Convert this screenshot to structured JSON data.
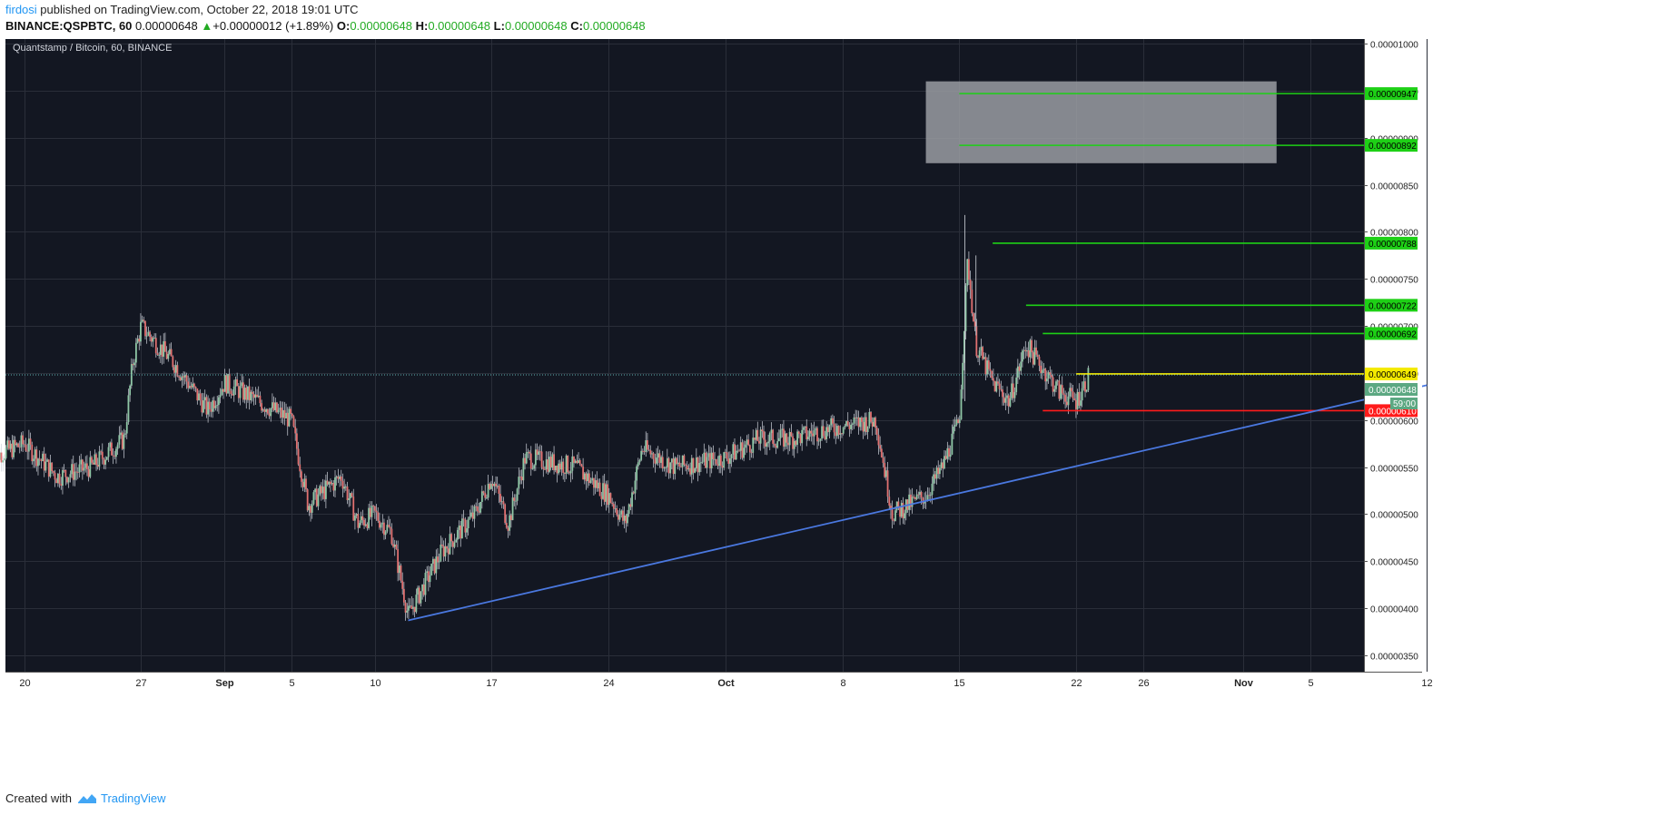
{
  "header": {
    "author": "firdosi",
    "published_text": " published on TradingView.com, October 22, 2018 19:01 UTC",
    "symbol_line": "BINANCE:QSPBTC, 60",
    "last": "0.00000648",
    "change_arrow": "▲",
    "change": "+0.00000012 (+1.89%)",
    "o_label": "O:",
    "o": "0.00000648",
    "h_label": "H:",
    "h": "0.00000648",
    "l_label": "L:",
    "l": "0.00000648",
    "c_label": "C:",
    "c": "0.00000648"
  },
  "footer": {
    "created_with": "Created with",
    "brand": "TradingView"
  },
  "colors": {
    "background": "#131722",
    "grid": "#2a2e39",
    "axis_text": "#222222",
    "candle_up": "#8fc7a6",
    "candle_down": "#e07070",
    "wick": "#d0d4dc",
    "target_green": "#1ed016",
    "resistance_yellow": "#f4ea00",
    "support_red": "#ff1b1b",
    "trendline": "#4a78e0",
    "zone": "#9a9ca2"
  },
  "chart_data": {
    "type": "candlestick",
    "title": "Quantstamp / Bitcoin, 60, BINANCE",
    "y_unit": "BTC",
    "ylim": [
      3.325e-06,
      1.005e-05
    ],
    "y_ticks": [
      "0.00001000",
      "0.00000950",
      "0.00000900",
      "0.00000850",
      "0.00000800",
      "0.00000750",
      "0.00000700",
      "0.00000650",
      "0.00000600",
      "0.00000550",
      "0.00000500",
      "0.00000450",
      "0.00000400",
      "0.00000350"
    ],
    "x_ticks": [
      "20",
      "27",
      "Sep",
      "5",
      "10",
      "17",
      "24",
      "Oct",
      "8",
      "15",
      "22",
      "26",
      "Nov",
      "5",
      "12"
    ],
    "x_tick_dates": [
      "2018-08-20",
      "2018-08-27",
      "2018-09-01",
      "2018-09-05",
      "2018-09-10",
      "2018-09-17",
      "2018-09-24",
      "2018-10-01",
      "2018-10-08",
      "2018-10-15",
      "2018-10-22",
      "2018-10-26",
      "2018-11-01",
      "2018-11-05",
      "2018-11-12"
    ],
    "price_path": [
      [
        "2018-08-18",
        5.6e-06
      ],
      [
        "2018-08-20",
        5.75e-06
      ],
      [
        "2018-08-22",
        5.4e-06
      ],
      [
        "2018-08-24",
        5.5e-06
      ],
      [
        "2018-08-26",
        5.8e-06
      ],
      [
        "2018-08-26T12",
        6.6e-06
      ],
      [
        "2018-08-27",
        7e-06
      ],
      [
        "2018-08-29",
        6.6e-06
      ],
      [
        "2018-08-31",
        6.1e-06
      ],
      [
        "2018-09-01",
        6.4e-06
      ],
      [
        "2018-09-02",
        6.3e-06
      ],
      [
        "2018-09-03",
        6.2e-06
      ],
      [
        "2018-09-05",
        6e-06
      ],
      [
        "2018-09-06",
        5.1e-06
      ],
      [
        "2018-09-08",
        5.4e-06
      ],
      [
        "2018-09-09",
        4.9e-06
      ],
      [
        "2018-09-10",
        5e-06
      ],
      [
        "2018-09-11",
        4.8e-06
      ],
      [
        "2018-09-12",
        3.92e-06
      ],
      [
        "2018-09-14",
        4.6e-06
      ],
      [
        "2018-09-16",
        5e-06
      ],
      [
        "2018-09-17",
        5.4e-06
      ],
      [
        "2018-09-18",
        4.9e-06
      ],
      [
        "2018-09-19",
        5.6e-06
      ],
      [
        "2018-09-22",
        5.5e-06
      ],
      [
        "2018-09-24",
        5.2e-06
      ],
      [
        "2018-09-25",
        4.9e-06
      ],
      [
        "2018-09-26",
        5.7e-06
      ],
      [
        "2018-09-28",
        5.5e-06
      ],
      [
        "2018-10-01",
        5.6e-06
      ],
      [
        "2018-10-03",
        5.8e-06
      ],
      [
        "2018-10-05",
        5.8e-06
      ],
      [
        "2018-10-07",
        5.9e-06
      ],
      [
        "2018-10-10",
        6e-06
      ],
      [
        "2018-10-11",
        5e-06
      ],
      [
        "2018-10-13",
        5.2e-06
      ],
      [
        "2018-10-14",
        5.5e-06
      ],
      [
        "2018-10-15",
        6e-06
      ],
      [
        "2018-10-15T12",
        7.7e-06
      ],
      [
        "2018-10-16",
        6.8e-06
      ],
      [
        "2018-10-17",
        6.4e-06
      ],
      [
        "2018-10-18",
        6.2e-06
      ],
      [
        "2018-10-19",
        6.8e-06
      ],
      [
        "2018-10-21",
        6.3e-06
      ],
      [
        "2018-10-22",
        6.2e-06
      ],
      [
        "2018-10-22T19",
        6.48e-06
      ]
    ],
    "current_price": "0.00000648",
    "current_price_value": 6.48e-06,
    "countdown": "59:00",
    "horizontal_lines": [
      {
        "label": "0.00000947",
        "value": 9.47e-06,
        "color": "green",
        "from": "2018-10-15"
      },
      {
        "label": "0.00000892",
        "value": 8.92e-06,
        "color": "green",
        "from": "2018-10-15"
      },
      {
        "label": "0.00000788",
        "value": 7.88e-06,
        "color": "green",
        "from": "2018-10-17"
      },
      {
        "label": "0.00000722",
        "value": 7.22e-06,
        "color": "green",
        "from": "2018-10-19"
      },
      {
        "label": "0.00000692",
        "value": 6.92e-06,
        "color": "green",
        "from": "2018-10-20"
      },
      {
        "label": "0.00000649",
        "value": 6.49e-06,
        "color": "yellow",
        "from": "2018-10-22"
      },
      {
        "label": "0.00000610",
        "value": 6.1e-06,
        "color": "red",
        "from": "2018-10-20"
      }
    ],
    "target_zone": {
      "from": "2018-10-13",
      "to": "2018-11-03",
      "low": 8.73e-06,
      "high": 9.6e-06
    },
    "trendline": {
      "from": [
        "2018-09-12",
        3.87e-06
      ],
      "to": [
        "2018-11-12",
        6.37e-06
      ]
    },
    "grid": true
  }
}
